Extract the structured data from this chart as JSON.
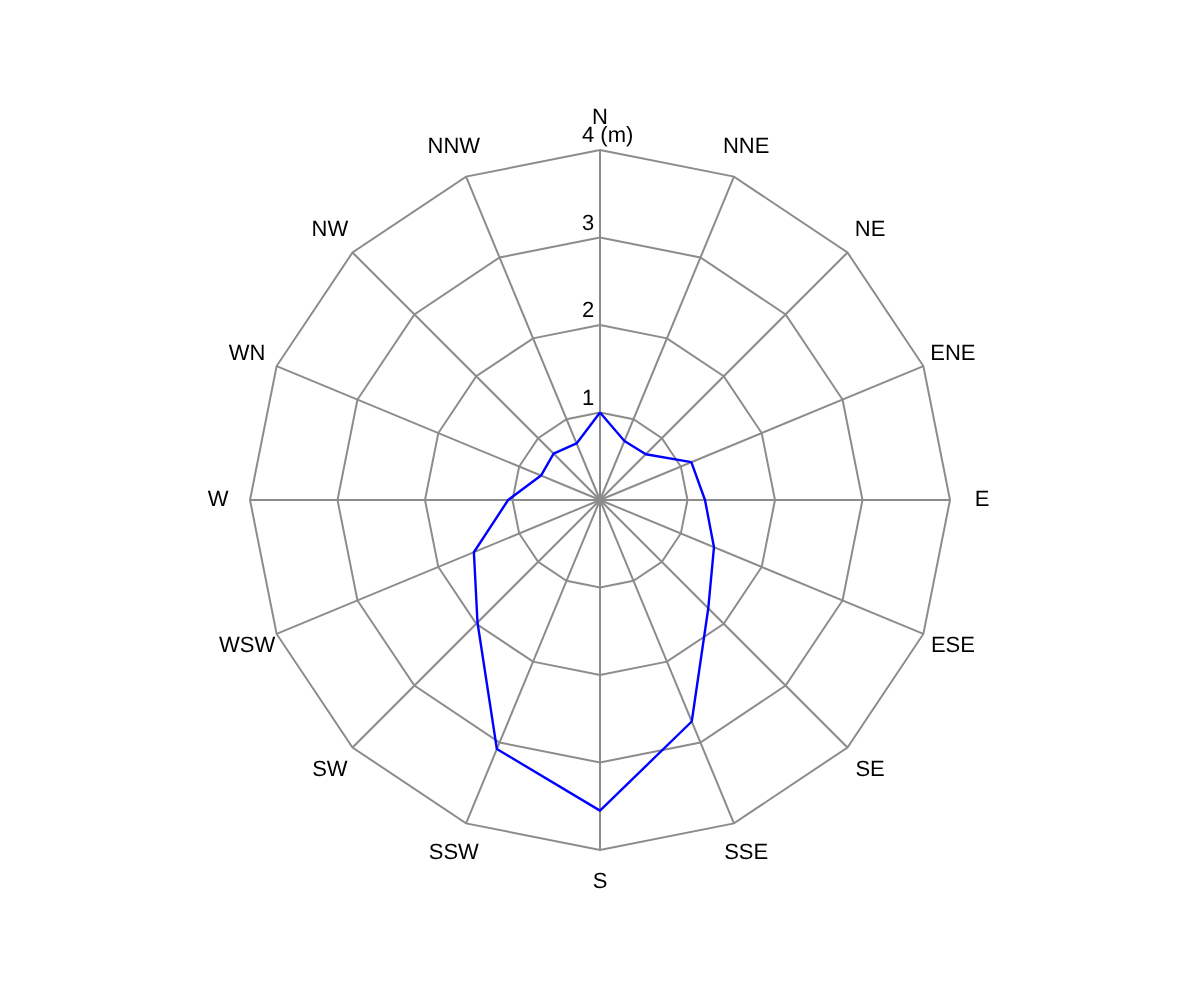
{
  "chart_data": {
    "type": "radar",
    "categories": [
      "N",
      "NNE",
      "NE",
      "ENE",
      "E",
      "ESE",
      "SE",
      "SSE",
      "S",
      "SSW",
      "SW",
      "WSW",
      "W",
      "WN",
      "NW",
      "NNW"
    ],
    "series": [
      {
        "color": "#0000ff",
        "values": [
          1.0,
          0.73,
          0.74,
          1.13,
          1.2,
          1.41,
          1.75,
          2.74,
          3.55,
          3.08,
          1.98,
          1.56,
          1.05,
          0.73,
          0.75,
          0.7
        ]
      }
    ],
    "ylim": [
      0,
      4
    ],
    "yticks": [
      1,
      2,
      3,
      {
        "value": 4,
        "label": "4 (m)"
      }
    ],
    "grid": true,
    "marker": "none",
    "line_style": "solid"
  }
}
